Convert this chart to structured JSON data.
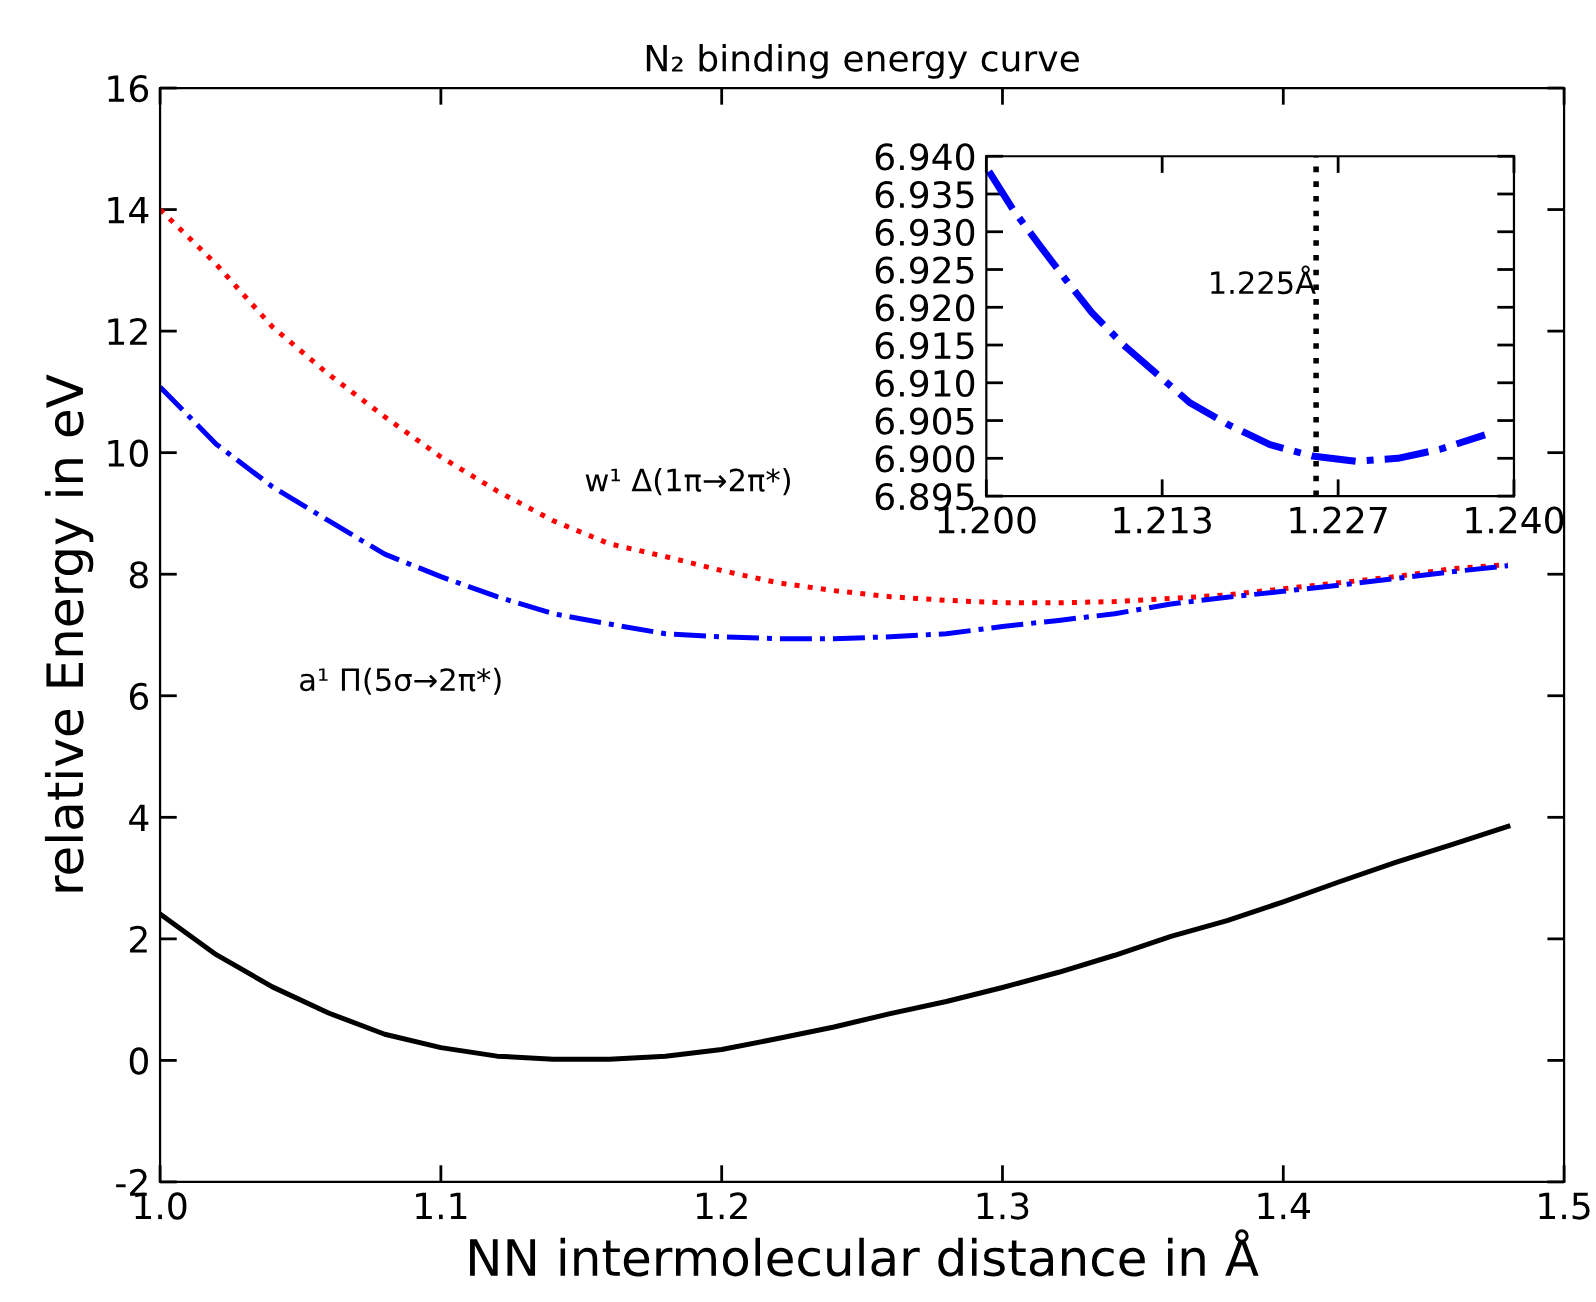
{
  "chart_data": [
    {
      "type": "line",
      "title": "N₂ binding energy curve",
      "xlabel": "NN intermolecular distance in Å",
      "ylabel": "relative Energy in eV",
      "x": [
        1.0,
        1.02,
        1.04,
        1.06,
        1.08,
        1.1,
        1.12,
        1.14,
        1.16,
        1.18,
        1.2,
        1.22,
        1.24,
        1.26,
        1.28,
        1.3,
        1.32,
        1.34,
        1.36,
        1.38,
        1.4,
        1.42,
        1.44,
        1.46,
        1.48
      ],
      "series": [
        {
          "color": "#000000",
          "line_style": "solid",
          "values": [
            2.41,
            1.74,
            1.21,
            0.78,
            0.43,
            0.21,
            0.07,
            0.02,
            0.02,
            0.07,
            0.18,
            0.36,
            0.55,
            0.77,
            0.97,
            1.2,
            1.45,
            1.73,
            2.04,
            2.3,
            2.61,
            2.94,
            3.26,
            3.55,
            3.85
          ]
        },
        {
          "name": "w¹ Δ(1π→2π*)",
          "color": "#ff0000",
          "line_style": "dotted",
          "values": [
            14.0,
            13.1,
            12.07,
            11.29,
            10.59,
            9.93,
            9.37,
            8.88,
            8.5,
            8.29,
            8.06,
            7.86,
            7.73,
            7.63,
            7.57,
            7.53,
            7.53,
            7.55,
            7.6,
            7.66,
            7.76,
            7.86,
            7.96,
            8.09,
            8.16
          ]
        },
        {
          "name": "a¹ Π(5σ→2π*)",
          "color": "#0000ff",
          "line_style": "dashdot",
          "values": [
            11.08,
            10.14,
            9.44,
            8.88,
            8.33,
            7.96,
            7.63,
            7.35,
            7.18,
            7.02,
            6.97,
            6.94,
            6.94,
            6.97,
            7.02,
            7.14,
            7.24,
            7.35,
            7.51,
            7.62,
            7.72,
            7.82,
            7.93,
            8.04,
            8.14
          ]
        }
      ],
      "xlim": [
        1.0,
        1.5
      ],
      "xticks": [
        {
          "value": 1.0,
          "label": "1.0"
        },
        1.1,
        1.2,
        1.3,
        1.4,
        1.5
      ],
      "ylim": [
        -2,
        16
      ],
      "yticks": [
        -2,
        0,
        2,
        4,
        6,
        8,
        10,
        12,
        14,
        16
      ],
      "grid": false,
      "legend": false
    },
    {
      "type": "line",
      "x": [
        1.2002,
        1.202,
        1.204,
        1.206,
        1.208,
        1.2104,
        1.2129,
        1.2154,
        1.2184,
        1.2215,
        1.2247,
        1.228,
        1.2312,
        1.2344,
        1.2378
      ],
      "series": [
        {
          "color": "#0000ff",
          "line_style": "dashdot",
          "values": [
            6.938,
            6.933,
            6.9283,
            6.9237,
            6.9193,
            6.915,
            6.9112,
            6.9074,
            6.9044,
            6.9018,
            6.9003,
            6.8996,
            6.9,
            6.9012,
            6.9031
          ]
        }
      ],
      "ref_lines": [
        {
          "axis": "x",
          "value": 1.225,
          "label": "1.225Å",
          "color": "#000000",
          "line_style": "dotted"
        }
      ],
      "xlim": [
        1.2,
        1.24
      ],
      "xticks": [
        {
          "value": 1.2,
          "label": "1.200"
        },
        {
          "value": 1.21333,
          "label": "1.213"
        },
        {
          "value": 1.22667,
          "label": "1.227"
        },
        {
          "value": 1.24,
          "label": "1.240"
        }
      ],
      "ylim": [
        6.895,
        6.94
      ],
      "yticks": [
        {
          "value": 6.895,
          "label": "6.895"
        },
        {
          "value": 6.9,
          "label": "6.900"
        },
        {
          "value": 6.905,
          "label": "6.905"
        },
        {
          "value": 6.91,
          "label": "6.910"
        },
        {
          "value": 6.915,
          "label": "6.915"
        },
        {
          "value": 6.92,
          "label": "6.920"
        },
        {
          "value": 6.925,
          "label": "6.925"
        },
        {
          "value": 6.93,
          "label": "6.930"
        },
        {
          "value": 6.935,
          "label": "6.935"
        },
        {
          "value": 6.94,
          "label": "6.940"
        }
      ],
      "grid": false,
      "legend": false
    }
  ]
}
